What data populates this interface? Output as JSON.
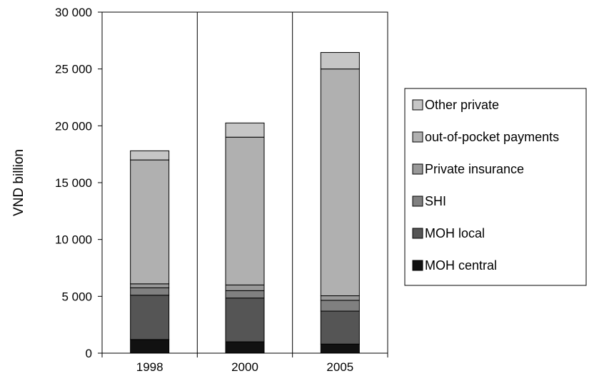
{
  "chart_data": {
    "type": "bar",
    "stacked": true,
    "title": "",
    "xlabel": "",
    "ylabel": "VND billion",
    "ylim": [
      0,
      30000
    ],
    "yticks": [
      0,
      5000,
      10000,
      15000,
      20000,
      25000,
      30000
    ],
    "ytick_labels": [
      "0",
      "5 000",
      "10 000",
      "15 000",
      "20 000",
      "25 000",
      "30 000"
    ],
    "categories": [
      "1998",
      "2000",
      "2005"
    ],
    "grid": {
      "vertical": true,
      "horizontal": false
    },
    "legend_position": "right",
    "series": [
      {
        "name": "MOH central",
        "color": "#111111",
        "values": [
          1200,
          1000,
          800
        ]
      },
      {
        "name": "MOH local",
        "color": "#555555",
        "values": [
          3900,
          3850,
          2900
        ]
      },
      {
        "name": "SHI",
        "color": "#808080",
        "values": [
          650,
          650,
          950
        ]
      },
      {
        "name": "Private insurance",
        "color": "#999999",
        "values": [
          350,
          500,
          400
        ]
      },
      {
        "name": "out-of-pocket payments",
        "color": "#b0b0b0",
        "values": [
          10900,
          13000,
          19950
        ]
      },
      {
        "name": "Other private",
        "color": "#c6c6c6",
        "values": [
          800,
          1250,
          1450
        ]
      }
    ]
  }
}
